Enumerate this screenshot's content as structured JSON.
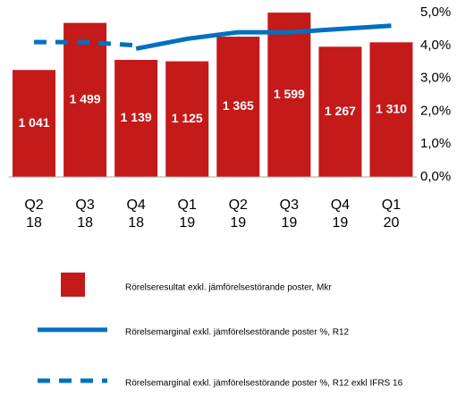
{
  "chart_data": {
    "type": "bar",
    "categories": [
      [
        "Q2",
        "18"
      ],
      [
        "Q3",
        "18"
      ],
      [
        "Q4",
        "18"
      ],
      [
        "Q1",
        "19"
      ],
      [
        "Q2",
        "19"
      ],
      [
        "Q3",
        "19"
      ],
      [
        "Q4",
        "19"
      ],
      [
        "Q1",
        "20"
      ]
    ],
    "ylim": [
      0,
      1600
    ],
    "y2lim": [
      0,
      5
    ],
    "y2ticks": [
      {
        "value": 0,
        "label": "0,0%"
      },
      {
        "value": 1,
        "label": "1,0%"
      },
      {
        "value": 2,
        "label": "2,0%"
      },
      {
        "value": 3,
        "label": "3,0%"
      },
      {
        "value": 4,
        "label": "4,0%"
      },
      {
        "value": 5,
        "label": "5,0%"
      }
    ],
    "series": [
      {
        "name": "Rörelseresultat exkl. jämförelsestörande poster, Mkr",
        "type": "bar",
        "color": "#c41a1a",
        "values": [
          1041,
          1499,
          1139,
          1125,
          1365,
          1599,
          1267,
          1310
        ],
        "value_labels": [
          "1 041",
          "1 499",
          "1 139",
          "1 125",
          "1 365",
          "1 599",
          "1 267",
          "1 310"
        ]
      },
      {
        "name": "Rörelsemarginal exkl. jämförelsestörande poster %, R12",
        "type": "line",
        "axis": "y2",
        "color": "#0070c0",
        "dash": false,
        "values": [
          null,
          null,
          3.9,
          4.2,
          4.4,
          4.4,
          4.5,
          4.6
        ]
      },
      {
        "name": "Rörelsemarginal exkl. jämförelsestörande poster %, R12 exkl IFRS 16",
        "type": "line",
        "axis": "y2",
        "color": "#0070c0",
        "dash": true,
        "values": [
          4.1,
          4.1,
          4.0,
          null,
          null,
          null,
          null,
          null
        ]
      }
    ],
    "legend": "bottom"
  }
}
